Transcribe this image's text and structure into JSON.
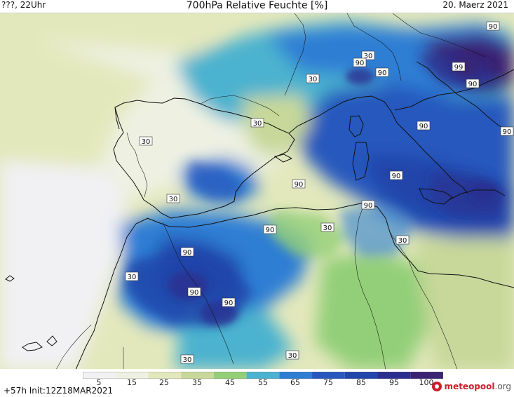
{
  "header": {
    "left_text": "???, 22Uhr",
    "title": "700hPa Relative Feuchte [%]",
    "date": "20. Maerz 2021"
  },
  "footer": {
    "init_text": "+57h Init:12Z18MAR2021",
    "logo": {
      "brand": "meteopool",
      "tld": ".org"
    }
  },
  "colorbar": {
    "labels": [
      "5",
      "15",
      "25",
      "35",
      "45",
      "55",
      "65",
      "75",
      "85",
      "95",
      "100"
    ],
    "colors": [
      "#f1f1f4",
      "#eef1e2",
      "#e3e8bc",
      "#c7d89a",
      "#93cf78",
      "#4bb2cf",
      "#2f7ed4",
      "#2858bd",
      "#2145aa",
      "#2a2f8f",
      "#3a2373"
    ]
  },
  "map": {
    "contour_labels": [
      "90",
      "30",
      "90",
      "90",
      "30",
      "99",
      "30",
      "30",
      "30",
      "90",
      "90",
      "90",
      "90",
      "90",
      "90",
      "30",
      "90",
      "30",
      "90",
      "90",
      "90",
      "30",
      "30",
      "30"
    ]
  }
}
